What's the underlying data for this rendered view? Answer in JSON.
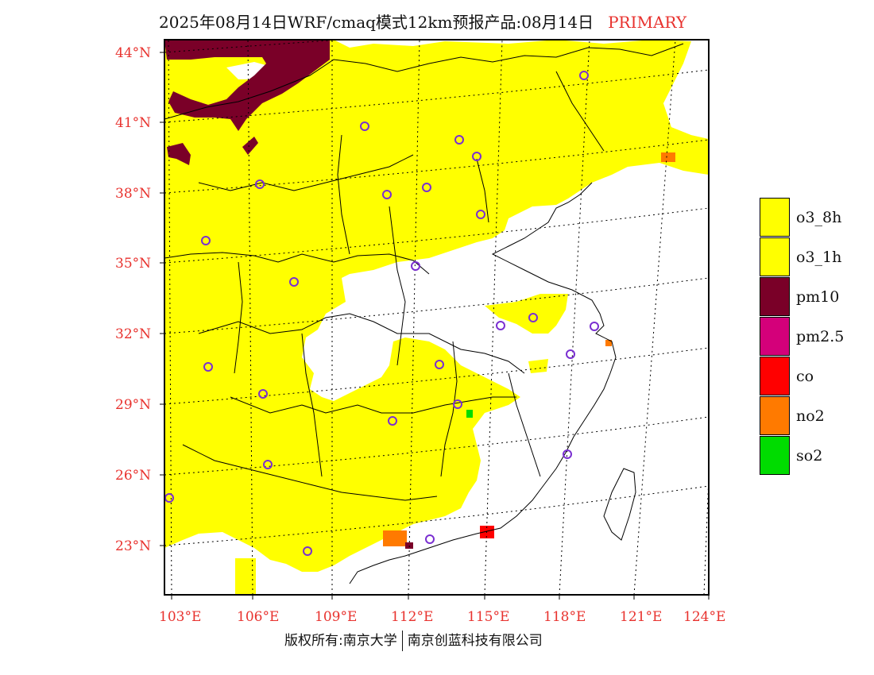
{
  "header": {
    "title": "2025年08月14日WRF/cmaq模式12km预报产品:08月14日",
    "tag": "PRIMARY"
  },
  "map": {
    "lon_ticks": [
      "103°E",
      "106°E",
      "109°E",
      "112°E",
      "115°E",
      "118°E",
      "121°E",
      "124°E"
    ],
    "lat_ticks": [
      "44°N",
      "41°N",
      "38°N",
      "35°N",
      "32°N",
      "29°N",
      "26°N",
      "23°N"
    ],
    "colors": {
      "o3": "#ffff00",
      "pm10": "#7a0028",
      "no2": "#ff7a00",
      "co": "#ff0000",
      "so2": "#00dc00",
      "station": "#7a2fd1",
      "axis": "#e8322e"
    }
  },
  "legend": {
    "items": [
      {
        "label": "o3_8h",
        "color": "#ffff00"
      },
      {
        "label": "o3_1h",
        "color": "#ffff00"
      },
      {
        "label": "pm10",
        "color": "#7a0028"
      },
      {
        "label": "pm2.5",
        "color": "#d4007a"
      },
      {
        "label": "co",
        "color": "#ff0000"
      },
      {
        "label": "no2",
        "color": "#ff7a00"
      },
      {
        "label": "so2",
        "color": "#00dc00"
      }
    ]
  },
  "footer": {
    "copyright": "版权所有:南京大学",
    "company": "南京创蓝科技有限公司"
  }
}
